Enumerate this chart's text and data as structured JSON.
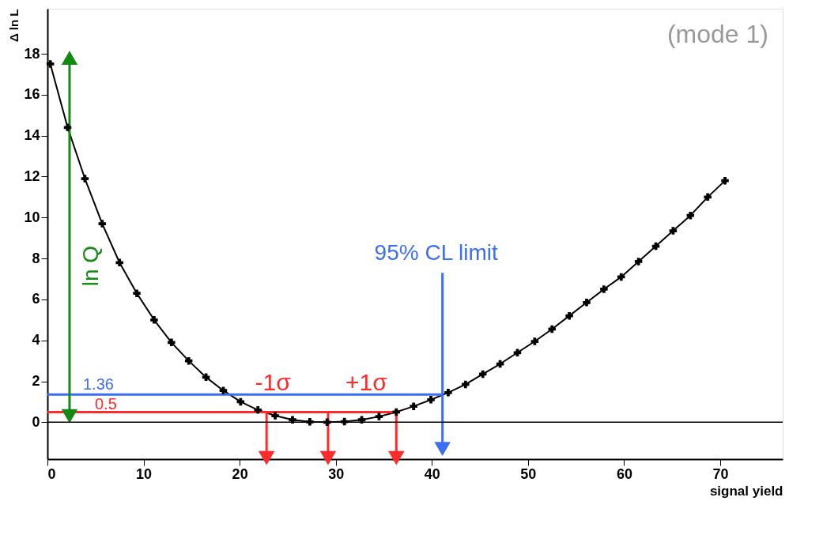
{
  "chart_data": {
    "type": "line",
    "xlabel": "signal yield",
    "ylabel": "Δ ln L",
    "xlim": [
      0,
      76.5
    ],
    "ylim": [
      -1.8,
      20.2
    ],
    "xticks": [
      0,
      10,
      20,
      30,
      40,
      50,
      60,
      70
    ],
    "yticks": [
      0,
      2,
      4,
      6,
      8,
      10,
      12,
      14,
      16,
      18
    ],
    "grid": false,
    "annotations": [
      "(mode 1)"
    ],
    "ref_lines": [
      {
        "axis": "y",
        "value": 0,
        "color": "#000000"
      }
    ],
    "series": [
      {
        "color": "#000000",
        "marker": "cross",
        "line_style": "solid",
        "x": [
          0.3,
          2.1,
          3.9,
          5.7,
          7.5,
          9.3,
          11.1,
          12.9,
          14.7,
          16.5,
          18.3,
          20.1,
          21.9,
          23.7,
          25.5,
          27.3,
          29.1,
          30.9,
          32.7,
          34.5,
          36.3,
          38.1,
          39.9,
          41.7,
          43.5,
          45.3,
          47.1,
          48.9,
          50.7,
          52.5,
          54.3,
          56.1,
          57.9,
          59.7,
          61.5,
          63.3,
          65.1,
          66.9,
          68.7,
          70.5
        ],
        "values": [
          17.5,
          14.4,
          11.9,
          9.7,
          7.8,
          6.3,
          5.0,
          3.9,
          3.0,
          2.2,
          1.55,
          1.0,
          0.6,
          0.32,
          0.12,
          0.02,
          0.0,
          0.03,
          0.12,
          0.28,
          0.5,
          0.78,
          1.1,
          1.45,
          1.85,
          2.35,
          2.85,
          3.4,
          3.95,
          4.55,
          5.2,
          5.85,
          6.5,
          7.1,
          7.85,
          8.6,
          9.35,
          10.1,
          11.0,
          11.8
        ]
      },
      {
        "name": "1.36",
        "color": "#3b6ef5",
        "x": [
          0,
          41.1
        ],
        "values": [
          1.36,
          1.36
        ]
      },
      {
        "name": "0.5",
        "color": "#ff2a2a",
        "x": [
          0,
          36.3
        ],
        "values": [
          0.5,
          0.5
        ]
      },
      {
        "name": "-1σ",
        "color": "#ff2a2a",
        "marker": "triangle",
        "x": [
          22.8,
          22.8
        ],
        "values": [
          0.5,
          -1.75
        ]
      },
      {
        "color": "#ff2a2a",
        "marker": "triangle",
        "x": [
          29.2,
          29.2
        ],
        "values": [
          0.5,
          -1.75
        ]
      },
      {
        "name": "+1σ",
        "color": "#ff2a2a",
        "marker": "triangle",
        "x": [
          36.3,
          36.3
        ],
        "values": [
          0.5,
          -1.75
        ]
      },
      {
        "name": "95% CL limit",
        "color": "#3b6ef5",
        "marker": "triangle",
        "x": [
          41.1,
          41.1
        ],
        "values": [
          7.3,
          -1.3
        ]
      },
      {
        "name": "ln Q",
        "color": "#138a13",
        "marker": "triangle",
        "x": [
          2.3,
          2.3
        ],
        "values": [
          0.3,
          17.8
        ]
      }
    ]
  }
}
